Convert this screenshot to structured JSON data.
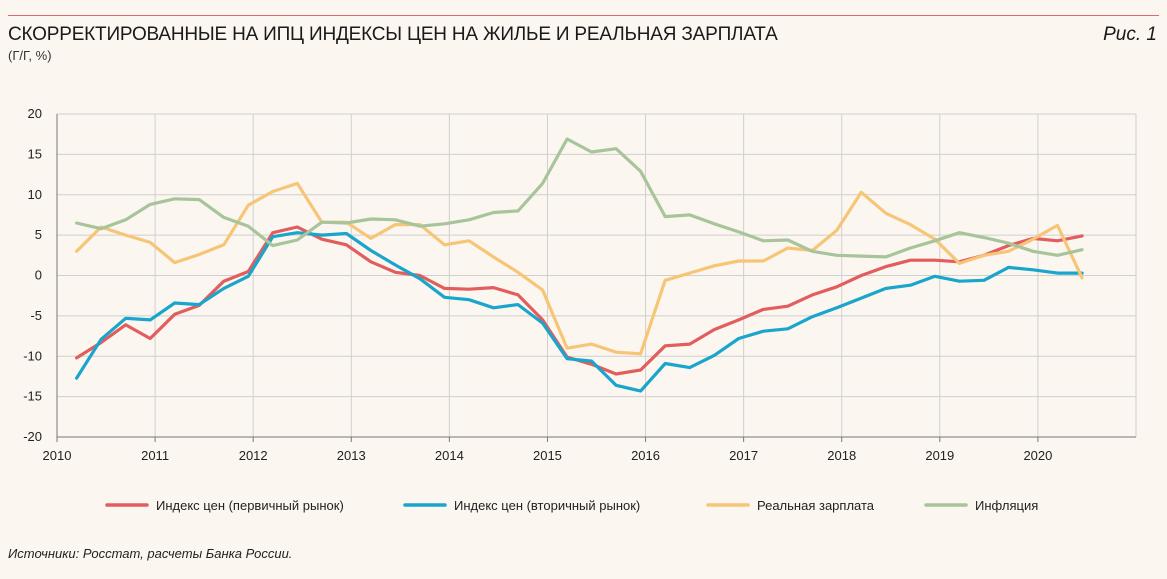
{
  "header": {
    "title": "СКОРРЕКТИРОВАННЫЕ НА ИПЦ ИНДЕКСЫ ЦЕН НА ЖИЛЬЕ И РЕАЛЬНАЯ ЗАРПЛАТА",
    "subtitle": "(Г/Г, %)",
    "figure_label": "Рис. 1"
  },
  "footer": {
    "source": "Источники: Росстат, расчеты Банка России."
  },
  "chart_data": {
    "type": "line",
    "title": "СКОРРЕКТИРОВАННЫЕ НА ИПЦ ИНДЕКСЫ ЦЕН НА ЖИЛЬЕ И РЕАЛЬНАЯ ЗАРПЛАТА",
    "ylabel": "(Г/Г, %)",
    "xlim": [
      2010,
      2021
    ],
    "ylim": [
      -20,
      20
    ],
    "x_ticks": [
      2010,
      2011,
      2012,
      2013,
      2014,
      2015,
      2016,
      2017,
      2018,
      2019,
      2020
    ],
    "y_ticks": [
      20,
      15,
      10,
      5,
      0,
      -5,
      -10,
      -15,
      -20
    ],
    "grid": true,
    "legend_position": "bottom",
    "series": [
      {
        "name": "Индекс цен (первичный рынок)",
        "color": "#e25d5d",
        "x": [
          2010.2,
          2010.45,
          2010.7,
          2010.95,
          2011.2,
          2011.45,
          2011.7,
          2011.95,
          2012.2,
          2012.45,
          2012.7,
          2012.95,
          2013.2,
          2013.45,
          2013.7,
          2013.95,
          2014.2,
          2014.45,
          2014.7,
          2014.95,
          2015.2,
          2015.45,
          2015.7,
          2015.95,
          2016.2,
          2016.45,
          2016.7,
          2016.95,
          2017.2,
          2017.45,
          2017.7,
          2017.95,
          2018.2,
          2018.45,
          2018.7,
          2018.95,
          2019.2,
          2019.45,
          2019.7,
          2019.95,
          2020.2,
          2020.45
        ],
        "y": [
          -10.2,
          -8.3,
          -6.1,
          -7.8,
          -4.8,
          -3.7,
          -0.7,
          0.5,
          5.3,
          6.0,
          4.5,
          3.8,
          1.7,
          0.4,
          0.0,
          -1.6,
          -1.7,
          -1.5,
          -2.4,
          -5.5,
          -10.1,
          -11.0,
          -12.2,
          -11.7,
          -8.7,
          -8.5,
          -6.7,
          -5.5,
          -4.2,
          -3.8,
          -2.4,
          -1.4,
          0.0,
          1.1,
          1.9,
          1.9,
          1.7,
          2.5,
          3.7,
          4.6,
          4.3,
          4.9
        ]
      },
      {
        "name": "Индекс цен (вторичный рынок)",
        "color": "#1aa6cc",
        "x": [
          2010.2,
          2010.45,
          2010.7,
          2010.95,
          2011.2,
          2011.45,
          2011.7,
          2011.95,
          2012.2,
          2012.45,
          2012.7,
          2012.95,
          2013.2,
          2013.45,
          2013.7,
          2013.95,
          2014.2,
          2014.45,
          2014.7,
          2014.95,
          2015.2,
          2015.45,
          2015.7,
          2015.95,
          2016.2,
          2016.45,
          2016.7,
          2016.95,
          2017.2,
          2017.45,
          2017.7,
          2017.95,
          2018.2,
          2018.45,
          2018.7,
          2018.95,
          2019.2,
          2019.45,
          2019.7,
          2019.95,
          2020.2,
          2020.45
        ],
        "y": [
          -12.7,
          -7.9,
          -5.3,
          -5.5,
          -3.4,
          -3.6,
          -1.6,
          -0.1,
          4.8,
          5.3,
          5.0,
          5.2,
          3.1,
          1.3,
          -0.4,
          -2.7,
          -3.0,
          -4.0,
          -3.6,
          -5.9,
          -10.3,
          -10.6,
          -13.6,
          -14.3,
          -10.9,
          -11.4,
          -9.9,
          -7.8,
          -6.9,
          -6.6,
          -5.1,
          -4.0,
          -2.8,
          -1.6,
          -1.2,
          -0.1,
          -0.7,
          -0.6,
          1.0,
          0.7,
          0.3,
          0.3
        ]
      },
      {
        "name": "Реальная зарплата",
        "color": "#f6c576",
        "x": [
          2010.2,
          2010.45,
          2010.7,
          2010.95,
          2011.2,
          2011.45,
          2011.7,
          2011.95,
          2012.2,
          2012.45,
          2012.7,
          2012.95,
          2013.2,
          2013.45,
          2013.7,
          2013.95,
          2014.2,
          2014.45,
          2014.7,
          2014.95,
          2015.2,
          2015.45,
          2015.7,
          2015.95,
          2016.2,
          2016.45,
          2016.7,
          2016.95,
          2017.2,
          2017.45,
          2017.7,
          2017.95,
          2018.2,
          2018.45,
          2018.7,
          2018.95,
          2019.2,
          2019.45,
          2019.7,
          2019.95,
          2020.2,
          2020.45
        ],
        "y": [
          3.0,
          6.0,
          5.0,
          4.1,
          1.6,
          2.6,
          3.8,
          8.7,
          10.4,
          11.4,
          6.6,
          6.6,
          4.6,
          6.3,
          6.3,
          3.8,
          4.3,
          2.3,
          0.4,
          -1.8,
          -9.0,
          -8.5,
          -9.5,
          -9.7,
          -0.6,
          0.3,
          1.2,
          1.8,
          1.8,
          3.4,
          3.1,
          5.6,
          10.3,
          7.7,
          6.3,
          4.5,
          1.5,
          2.5,
          3.0,
          4.5,
          6.2,
          -0.3
        ]
      },
      {
        "name": "Инфляция",
        "color": "#a8c49a",
        "x": [
          2010.2,
          2010.45,
          2010.7,
          2010.95,
          2011.2,
          2011.45,
          2011.7,
          2011.95,
          2012.2,
          2012.45,
          2012.7,
          2012.95,
          2013.2,
          2013.45,
          2013.7,
          2013.95,
          2014.2,
          2014.45,
          2014.7,
          2014.95,
          2015.2,
          2015.45,
          2015.7,
          2015.95,
          2016.2,
          2016.45,
          2016.7,
          2016.95,
          2017.2,
          2017.45,
          2017.7,
          2017.95,
          2018.2,
          2018.45,
          2018.7,
          2018.95,
          2019.2,
          2019.45,
          2019.7,
          2019.95,
          2020.2,
          2020.45
        ],
        "y": [
          6.5,
          5.8,
          6.9,
          8.8,
          9.5,
          9.4,
          7.2,
          6.1,
          3.7,
          4.4,
          6.6,
          6.5,
          7.0,
          6.9,
          6.1,
          6.4,
          6.9,
          7.8,
          8.0,
          11.4,
          16.9,
          15.3,
          15.7,
          12.9,
          7.3,
          7.5,
          6.4,
          5.4,
          4.3,
          4.4,
          3.0,
          2.5,
          2.4,
          2.3,
          3.4,
          4.3,
          5.3,
          4.7,
          4.0,
          3.0,
          2.5,
          3.2
        ]
      }
    ]
  }
}
